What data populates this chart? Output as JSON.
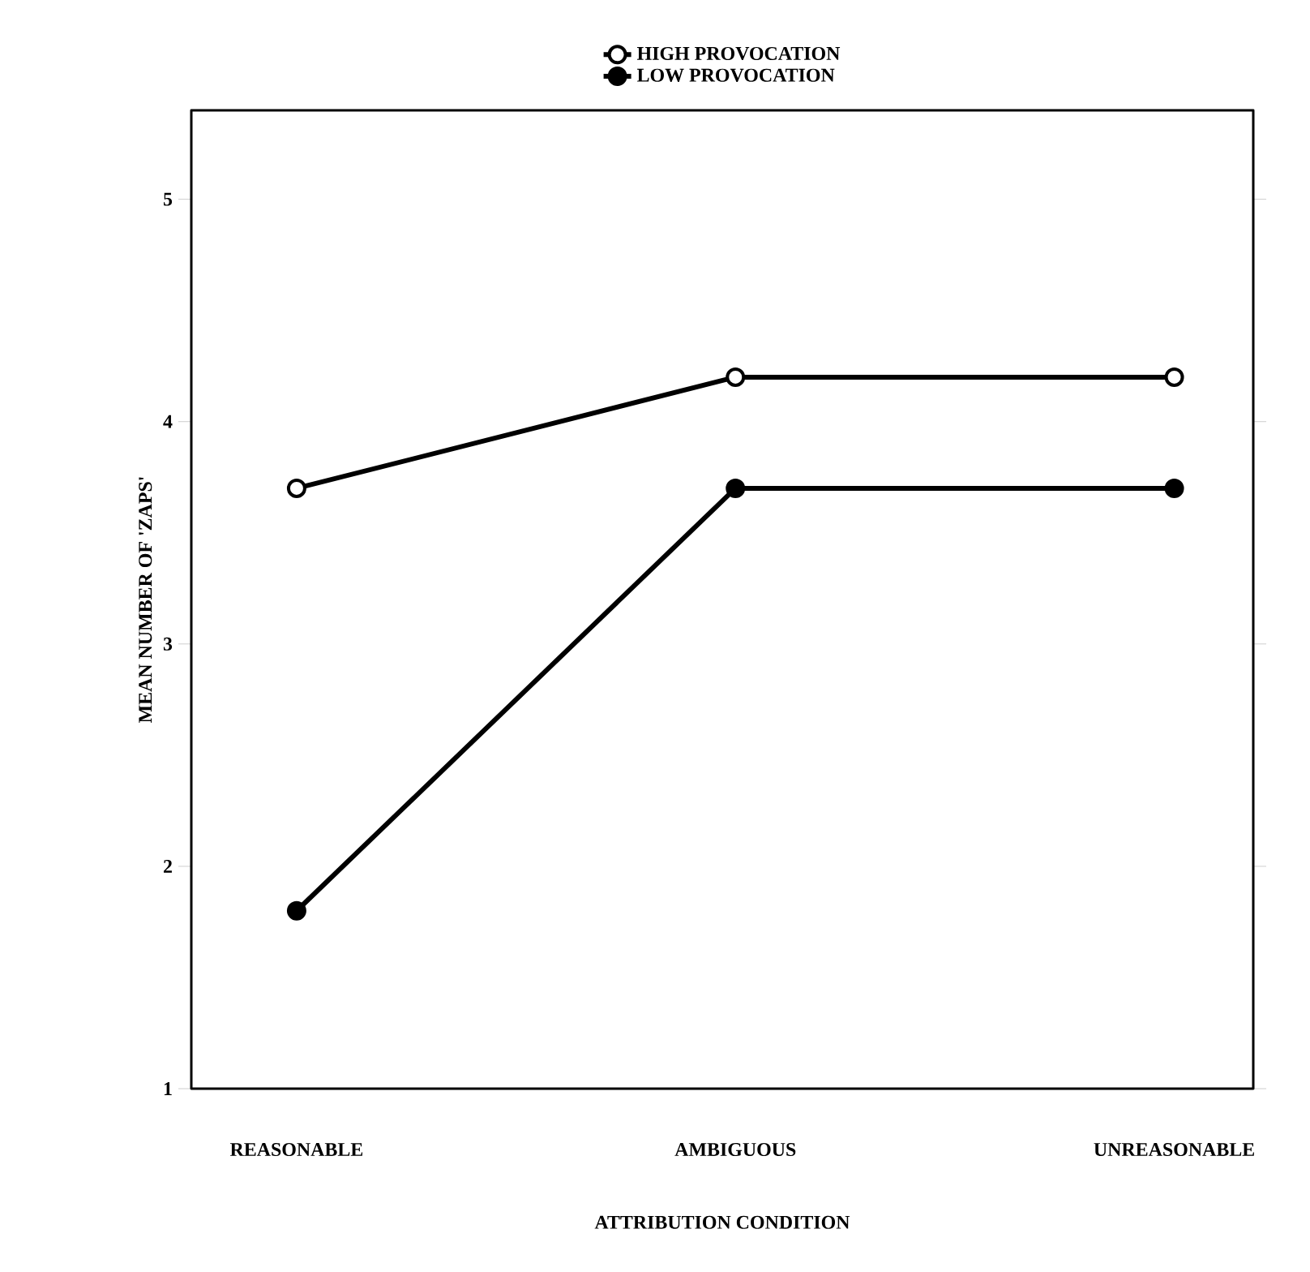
{
  "chart_data": {
    "type": "line",
    "xlabel": "ATTRIBUTION CONDITION",
    "ylabel": "MEAN NUMBER OF 'ZAPS'",
    "categories": [
      "REASONABLE",
      "AMBIGUOUS",
      "UNREASONABLE"
    ],
    "series": [
      {
        "name": "HIGH PROVOCATION",
        "color": "#000000",
        "values": [
          3.7,
          4.2,
          4.2
        ]
      },
      {
        "name": "LOW PROVOCATION",
        "color": "#000000",
        "values": [
          1.8,
          3.7,
          3.7
        ]
      }
    ],
    "ylim": [
      1,
      5.4
    ],
    "yticks": [
      1,
      2,
      3,
      4,
      5
    ],
    "grid": false,
    "legend": "top",
    "marker": "circle",
    "line_style": "solid"
  }
}
